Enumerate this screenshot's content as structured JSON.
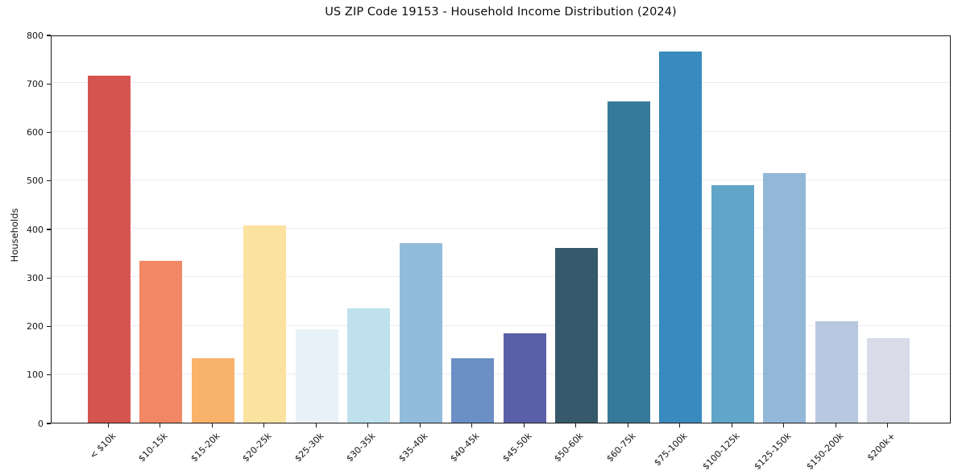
{
  "chart_data": {
    "type": "bar",
    "title": "US ZIP Code 19153 - Household Income Distribution (2024)",
    "xlabel": "",
    "ylabel": "Households",
    "ylim": [
      0,
      800
    ],
    "y_ticks": [
      0,
      100,
      200,
      300,
      400,
      500,
      600,
      700,
      800
    ],
    "grid": "horizontal",
    "gridline_color": "#eaeaf2",
    "background_color": "#ffffff",
    "spine_color": "#1a1a1a",
    "legend": "none",
    "categories": [
      "< $10k",
      "$10-15k",
      "$15-20k",
      "$20-25k",
      "$25-30k",
      "$30-35k",
      "$35-40k",
      "$40-45k",
      "$45-50k",
      "$50-60k",
      "$60-75k",
      "$75-100k",
      "$100-125k",
      "$125-150k",
      "$150-200k",
      "$200k+"
    ],
    "values": [
      716,
      334,
      133,
      406,
      192,
      236,
      370,
      133,
      184,
      360,
      663,
      765,
      490,
      515,
      210,
      174
    ],
    "bar_colors": [
      "#d6544f",
      "#f28765",
      "#f9b269",
      "#fce2a0",
      "#e7f1f7",
      "#bfe0ed",
      "#91bcda",
      "#6c8fc5",
      "#5b5fa8",
      "#36596b",
      "#37799b",
      "#398abe",
      "#61a6c8",
      "#93b8d7",
      "#b9c8e1",
      "#d9dbe9"
    ]
  }
}
